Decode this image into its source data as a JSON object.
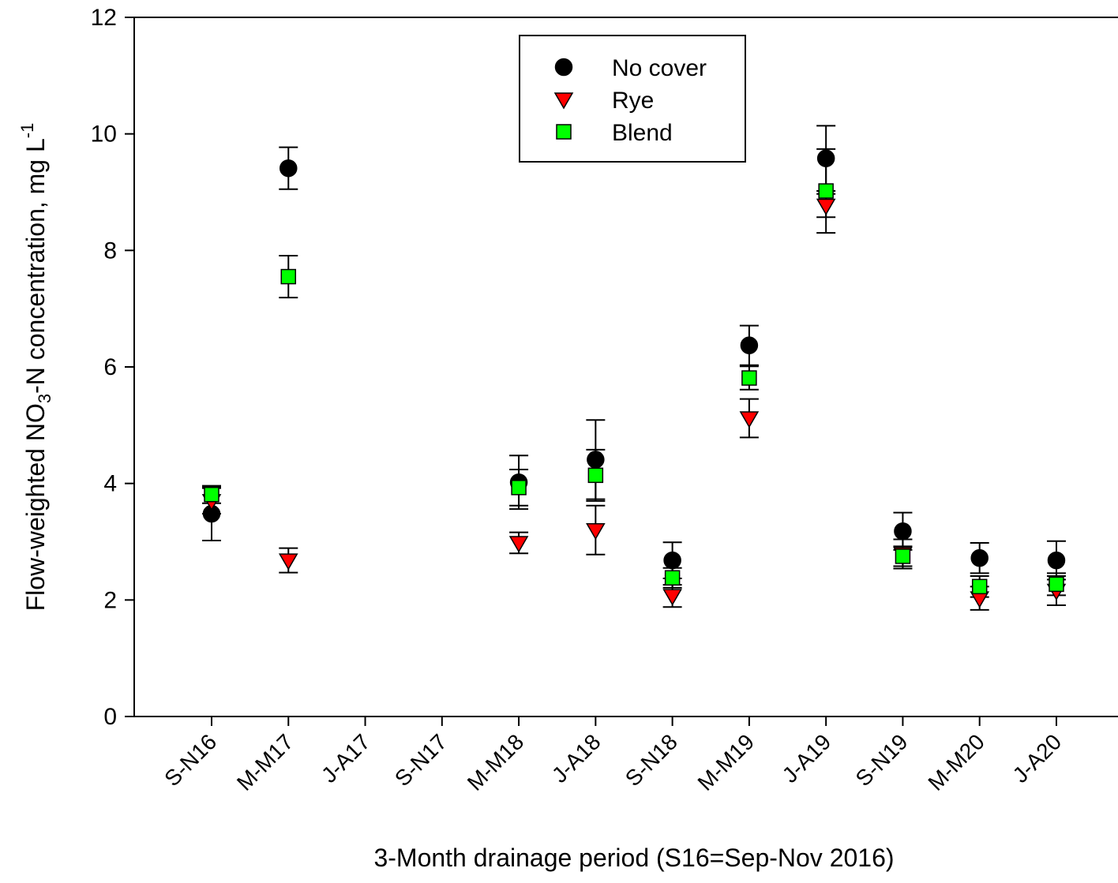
{
  "chart_data": {
    "type": "scatter",
    "xlabel": "3-Month drainage period (S16=Sep-Nov 2016)",
    "ylabel": {
      "prefix": "Flow-weighted NO",
      "sub": "3",
      "middle": "-N concentration, mg L",
      "sup": "-1"
    },
    "ylim": [
      0,
      12
    ],
    "yticks": [
      "0",
      "2",
      "4",
      "6",
      "8",
      "10",
      "12"
    ],
    "categories": [
      "S-N16",
      "M-M17",
      "J-A17",
      "S-N17",
      "M-M18",
      "J-A18",
      "S-N18",
      "M-M19",
      "J-A19",
      "S-N19",
      "M-M20",
      "J-A20"
    ],
    "legend_position": "top-center",
    "series": [
      {
        "name": "No cover",
        "marker": "circle",
        "color": "#000000",
        "values": [
          3.48,
          9.41,
          null,
          null,
          4.02,
          4.41,
          2.68,
          6.37,
          9.58,
          3.18,
          2.72,
          2.68
        ],
        "error": [
          0.46,
          0.36,
          null,
          null,
          0.46,
          0.68,
          0.31,
          0.34,
          0.56,
          0.32,
          0.26,
          0.33
        ]
      },
      {
        "name": "Rye",
        "marker": "triangle-down",
        "color": "#ff0000",
        "values": [
          3.7,
          2.68,
          null,
          null,
          2.98,
          3.2,
          2.07,
          5.12,
          8.77,
          2.79,
          2.03,
          2.16
        ],
        "error": [
          0.22,
          0.21,
          null,
          null,
          0.18,
          0.42,
          0.19,
          0.33,
          0.2,
          0.25,
          0.2,
          0.25
        ]
      },
      {
        "name": "Blend",
        "marker": "square",
        "color": "#00ff00",
        "values": [
          3.81,
          7.55,
          null,
          null,
          3.93,
          4.14,
          2.38,
          5.81,
          9.02,
          2.75,
          2.23,
          2.27
        ],
        "error": [
          0.15,
          0.36,
          null,
          null,
          0.31,
          0.44,
          0.17,
          0.2,
          0.72,
          0.17,
          0.18,
          0.19
        ]
      }
    ]
  }
}
